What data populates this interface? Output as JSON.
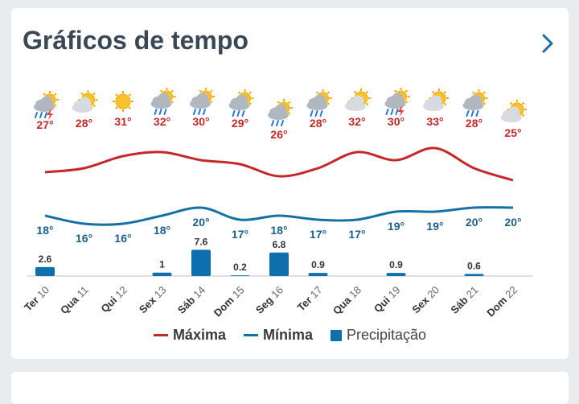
{
  "card": {
    "title": "Gráficos de tempo"
  },
  "colors": {
    "max": "#c62828",
    "min": "#1670a8",
    "precip": "#0e6fae",
    "max_label": "#c62828",
    "min_label": "#1d5f8f"
  },
  "legend": {
    "max_label": "Máxima",
    "min_label": "Mínima",
    "precip_label": "Precipitação"
  },
  "chart_data": {
    "type": "line",
    "categories": [
      "Ter 10",
      "Qua 11",
      "Qui 12",
      "Sex 13",
      "Sáb 14",
      "Dom 15",
      "Seg 16",
      "Ter 17",
      "Qua 18",
      "Qui 19",
      "Sex 20",
      "Sáb 21",
      "Dom 22"
    ],
    "icons": [
      "storm-rain-icon",
      "partly-cloudy-icon",
      "sunny-icon",
      "sun-cloud-rain-icon",
      "sun-cloud-rain-icon",
      "sun-cloud-rain-icon",
      "sun-cloud-rain-icon",
      "sun-cloud-rain-icon",
      "partly-cloudy-icon",
      "storm-rain-icon",
      "partly-cloudy-icon",
      "sun-cloud-rain-icon",
      "partly-cloudy-icon"
    ],
    "series": [
      {
        "name": "Máxima",
        "values": [
          27,
          28,
          31,
          32,
          30,
          29,
          26,
          28,
          32,
          30,
          33,
          28,
          25
        ]
      },
      {
        "name": "Mínima",
        "values": [
          18,
          16,
          16,
          18,
          20,
          17,
          18,
          17,
          17,
          19,
          19,
          20,
          20
        ]
      },
      {
        "name": "Precipitação",
        "values": [
          2.6,
          0,
          0,
          1,
          7.6,
          0.2,
          6.8,
          0.9,
          0,
          0.9,
          0,
          0.6,
          0
        ]
      }
    ],
    "max_labels": [
      "27°",
      "28°",
      "31°",
      "32°",
      "30°",
      "29°",
      "26°",
      "28°",
      "32°",
      "30°",
      "33°",
      "28°",
      "25°"
    ],
    "min_labels": [
      "18°",
      "16°",
      "16°",
      "18°",
      "20°",
      "17°",
      "18°",
      "17°",
      "17°",
      "19°",
      "19°",
      "20°",
      "20°"
    ],
    "precip_labels": [
      "2.6",
      "",
      "",
      "1",
      "7.6",
      "0.2",
      "6.8",
      "0.9",
      "",
      "0.9",
      "",
      "0.6",
      ""
    ]
  }
}
